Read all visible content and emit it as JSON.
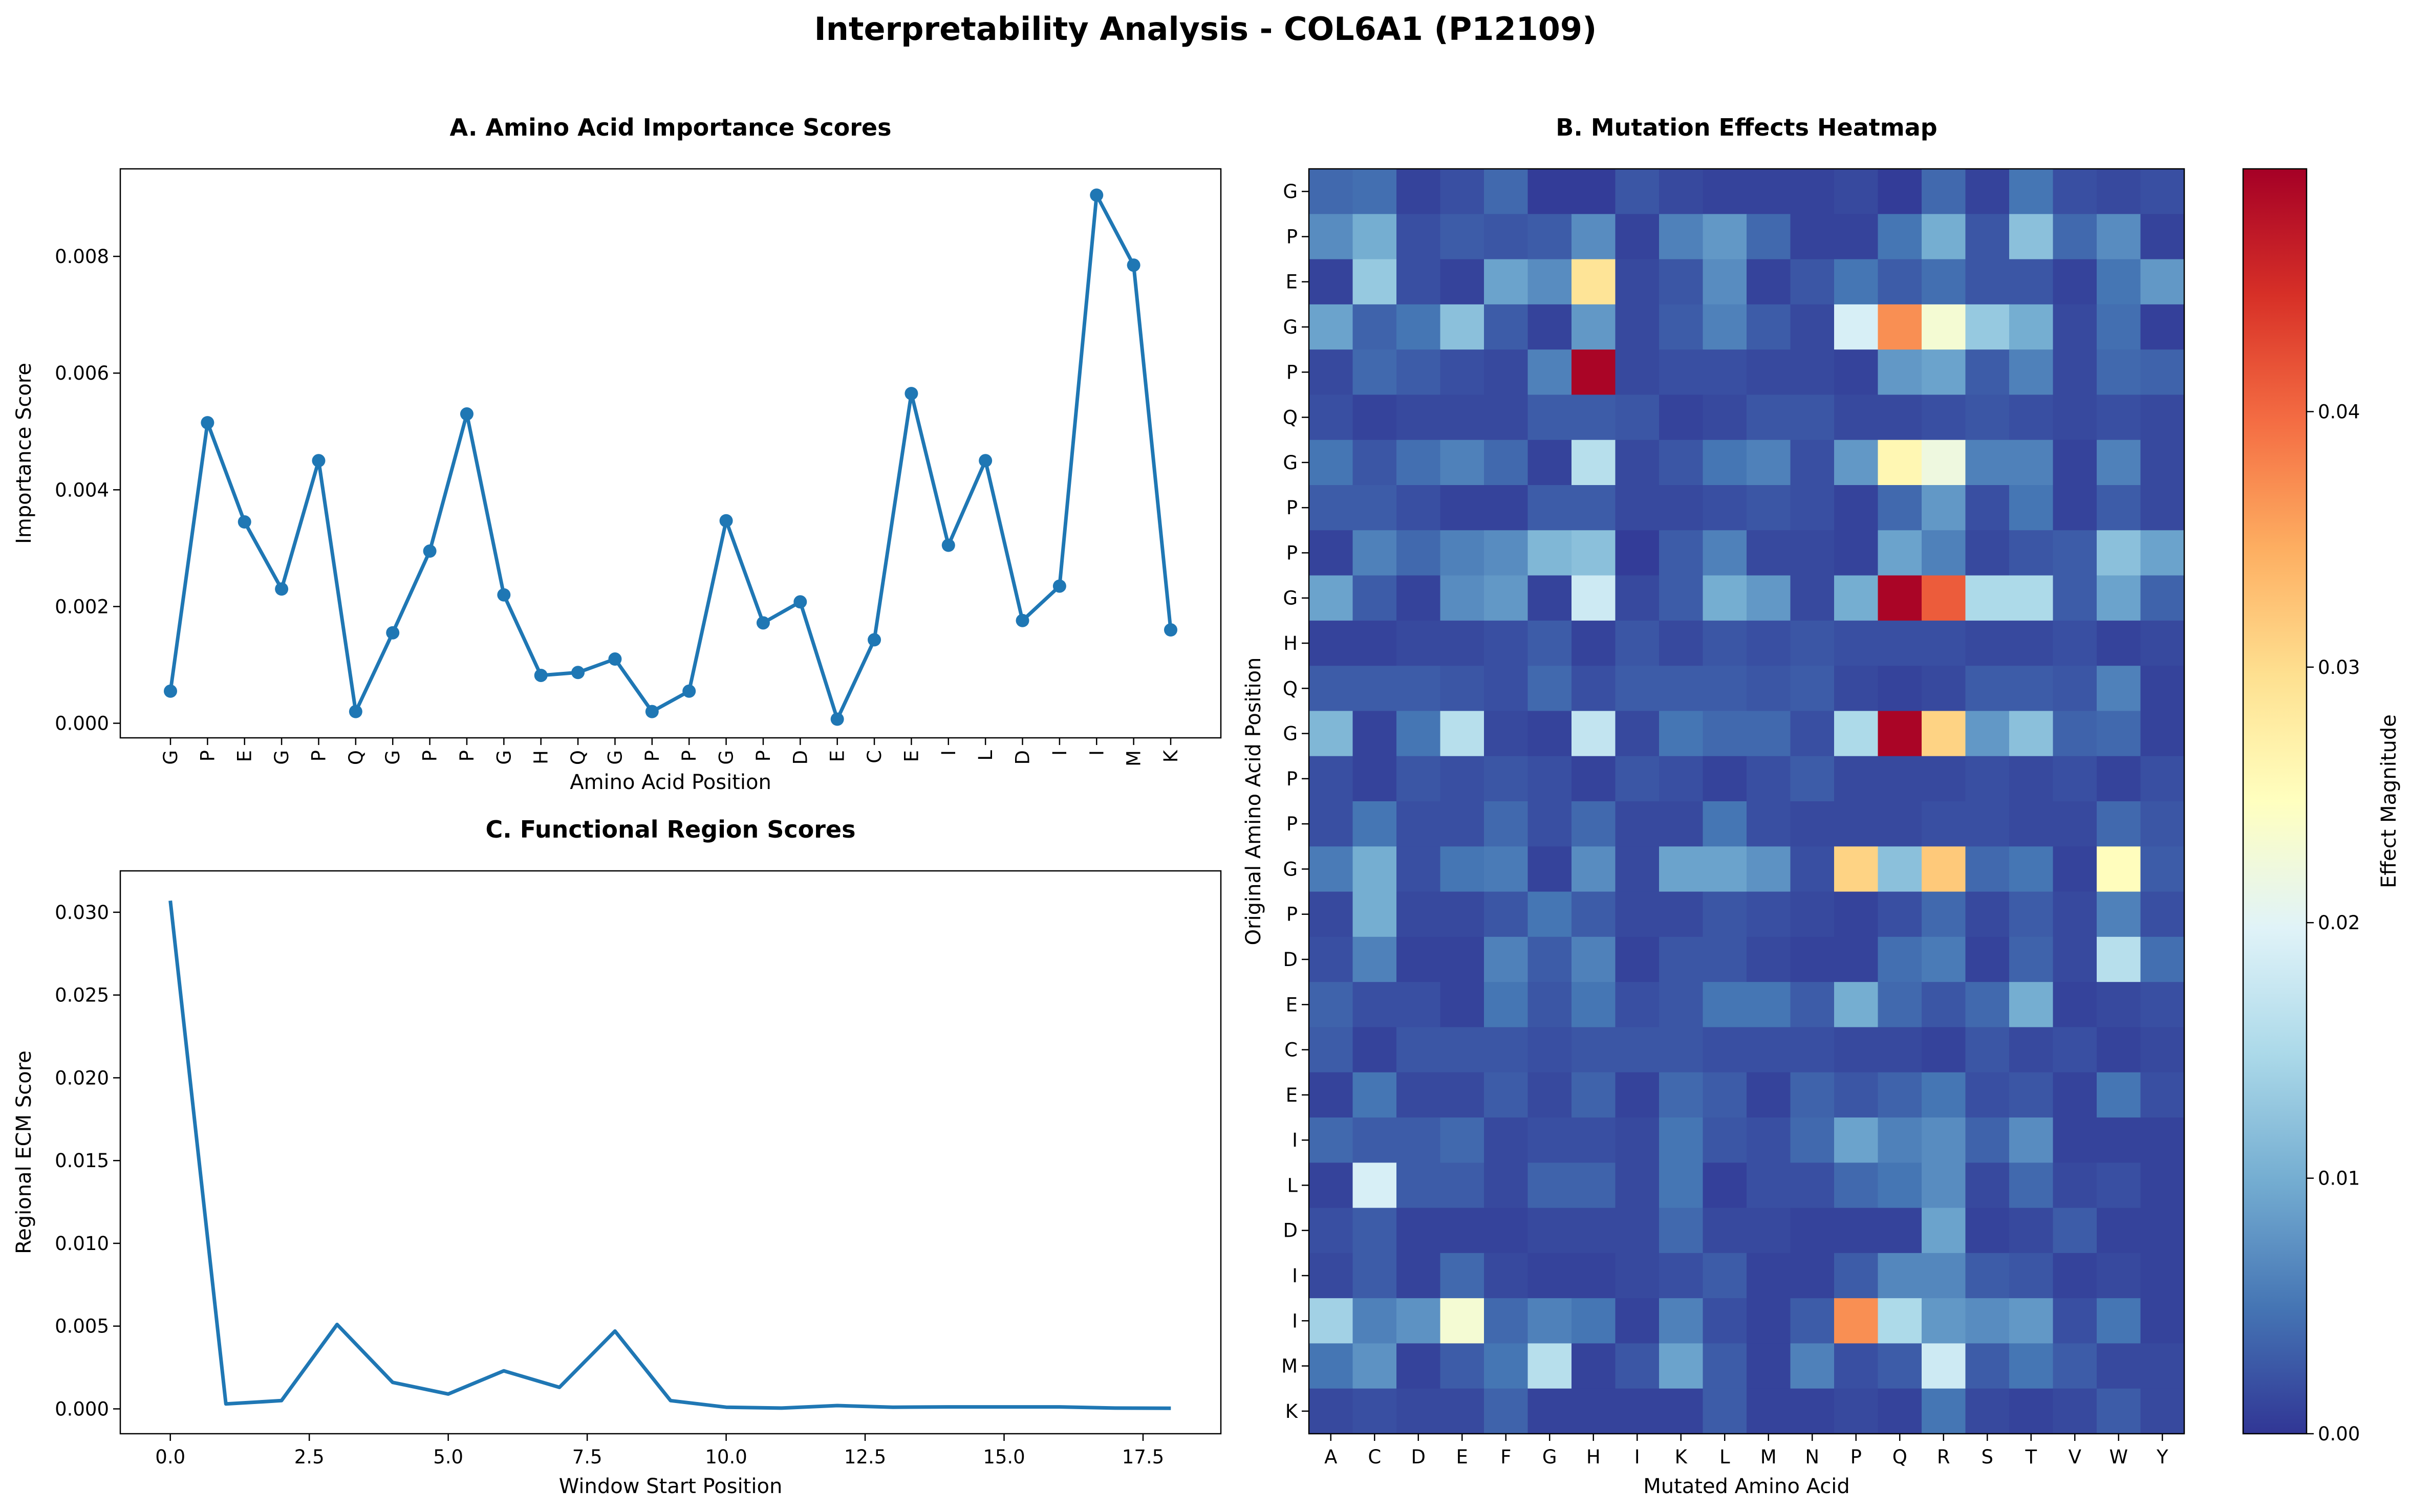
{
  "figure": {
    "title": "Interpretability Analysis - COL6A1 (P12109)"
  },
  "colors": {
    "line": "#1f77b4",
    "axis": "#000000",
    "colormap": "RdYlBu_r"
  },
  "chart_data": [
    {
      "id": "A",
      "type": "line",
      "title": "A. Amino Acid Importance Scores",
      "xlabel": "Amino Acid Position",
      "ylabel": "Importance Score",
      "categories": [
        "G",
        "P",
        "E",
        "G",
        "P",
        "Q",
        "G",
        "P",
        "P",
        "G",
        "H",
        "Q",
        "G",
        "P",
        "P",
        "G",
        "P",
        "D",
        "E",
        "C",
        "E",
        "I",
        "L",
        "D",
        "I",
        "I",
        "M",
        "K"
      ],
      "values": [
        0.00055,
        0.00515,
        0.00345,
        0.0023,
        0.0045,
        0.0002,
        0.00155,
        0.00295,
        0.0053,
        0.0022,
        0.00082,
        0.00087,
        0.0011,
        0.0002,
        0.00055,
        0.00347,
        0.00172,
        0.00208,
        7e-05,
        0.00143,
        0.00565,
        0.00305,
        0.0045,
        0.00176,
        0.00235,
        0.00905,
        0.00785,
        0.0016
      ],
      "ylim": [
        -0.00025,
        0.0095
      ],
      "yticks": [
        "0.000",
        "0.002",
        "0.004",
        "0.006",
        "0.008"
      ],
      "markers": true,
      "grid": false
    },
    {
      "id": "B",
      "type": "heatmap",
      "title": "B. Mutation Effects Heatmap",
      "xlabel": "Mutated Amino Acid",
      "ylabel": "Original Amino Acid Position",
      "x": [
        "A",
        "C",
        "D",
        "E",
        "F",
        "G",
        "H",
        "I",
        "K",
        "L",
        "M",
        "N",
        "P",
        "Q",
        "R",
        "S",
        "T",
        "V",
        "W",
        "Y"
      ],
      "y": [
        "G",
        "P",
        "E",
        "G",
        "P",
        "Q",
        "G",
        "P",
        "P",
        "G",
        "H",
        "Q",
        "G",
        "P",
        "P",
        "G",
        "P",
        "D",
        "E",
        "C",
        "E",
        "I",
        "L",
        "D",
        "I",
        "I",
        "M",
        "K"
      ],
      "values": [
        [
          0.004,
          0.0045,
          0.001,
          0.002,
          0.004,
          0.0005,
          0.0005,
          0.0025,
          0.0015,
          0.001,
          0.001,
          0.001,
          0.0015,
          0.0005,
          0.004,
          0.001,
          0.005,
          0.002,
          0.0015,
          0.002
        ],
        [
          0.007,
          0.01,
          0.002,
          0.003,
          0.0025,
          0.003,
          0.007,
          0.001,
          0.006,
          0.008,
          0.004,
          0.001,
          0.001,
          0.005,
          0.01,
          0.0025,
          0.012,
          0.004,
          0.007,
          0.001
        ],
        [
          0.001,
          0.013,
          0.002,
          0.001,
          0.009,
          0.007,
          0.029,
          0.0015,
          0.0025,
          0.007,
          0.001,
          0.0025,
          0.005,
          0.003,
          0.0045,
          0.0025,
          0.0025,
          0.001,
          0.005,
          0.008
        ],
        [
          0.009,
          0.0035,
          0.005,
          0.012,
          0.003,
          0.001,
          0.008,
          0.0015,
          0.003,
          0.006,
          0.003,
          0.0015,
          0.019,
          0.037,
          0.023,
          0.013,
          0.01,
          0.0015,
          0.0045,
          0.0008
        ],
        [
          0.0015,
          0.004,
          0.003,
          0.002,
          0.0015,
          0.006,
          0.049,
          0.0015,
          0.002,
          0.002,
          0.0015,
          0.0015,
          0.001,
          0.008,
          0.009,
          0.003,
          0.006,
          0.0015,
          0.004,
          0.0035
        ],
        [
          0.002,
          0.001,
          0.0015,
          0.0015,
          0.0015,
          0.003,
          0.003,
          0.0025,
          0.001,
          0.0015,
          0.0025,
          0.0025,
          0.0015,
          0.0015,
          0.002,
          0.0025,
          0.002,
          0.0015,
          0.002,
          0.0015
        ],
        [
          0.005,
          0.0025,
          0.0045,
          0.006,
          0.004,
          0.001,
          0.016,
          0.0015,
          0.0025,
          0.005,
          0.006,
          0.002,
          0.008,
          0.026,
          0.022,
          0.006,
          0.006,
          0.001,
          0.006,
          0.0015
        ],
        [
          0.003,
          0.003,
          0.002,
          0.001,
          0.001,
          0.003,
          0.003,
          0.0015,
          0.0015,
          0.002,
          0.0025,
          0.002,
          0.001,
          0.004,
          0.008,
          0.002,
          0.005,
          0.001,
          0.003,
          0.0015
        ],
        [
          0.001,
          0.006,
          0.004,
          0.006,
          0.007,
          0.011,
          0.012,
          0.0005,
          0.003,
          0.006,
          0.0015,
          0.0015,
          0.001,
          0.009,
          0.006,
          0.0015,
          0.0025,
          0.003,
          0.012,
          0.009
        ],
        [
          0.009,
          0.003,
          0.001,
          0.007,
          0.008,
          0.001,
          0.018,
          0.0015,
          0.003,
          0.01,
          0.008,
          0.0015,
          0.01,
          0.049,
          0.041,
          0.015,
          0.015,
          0.003,
          0.009,
          0.0035
        ],
        [
          0.001,
          0.001,
          0.0015,
          0.0015,
          0.002,
          0.003,
          0.001,
          0.0025,
          0.0015,
          0.0025,
          0.002,
          0.0025,
          0.002,
          0.002,
          0.002,
          0.0015,
          0.0015,
          0.002,
          0.001,
          0.0015
        ],
        [
          0.003,
          0.003,
          0.003,
          0.0025,
          0.002,
          0.004,
          0.002,
          0.003,
          0.003,
          0.003,
          0.0025,
          0.003,
          0.0015,
          0.001,
          0.0015,
          0.003,
          0.003,
          0.0025,
          0.006,
          0.001
        ],
        [
          0.011,
          0.001,
          0.005,
          0.016,
          0.0015,
          0.001,
          0.017,
          0.0015,
          0.005,
          0.004,
          0.004,
          0.002,
          0.015,
          0.049,
          0.031,
          0.008,
          0.012,
          0.0035,
          0.004,
          0.001
        ],
        [
          0.002,
          0.001,
          0.0025,
          0.002,
          0.0025,
          0.002,
          0.001,
          0.0025,
          0.002,
          0.001,
          0.002,
          0.003,
          0.0015,
          0.0015,
          0.0015,
          0.002,
          0.0015,
          0.002,
          0.001,
          0.002
        ],
        [
          0.002,
          0.005,
          0.002,
          0.002,
          0.004,
          0.002,
          0.004,
          0.0015,
          0.0015,
          0.005,
          0.002,
          0.0015,
          0.0015,
          0.0015,
          0.002,
          0.002,
          0.0015,
          0.0015,
          0.004,
          0.0025
        ],
        [
          0.0055,
          0.01,
          0.002,
          0.005,
          0.0055,
          0.001,
          0.007,
          0.0015,
          0.009,
          0.009,
          0.0075,
          0.002,
          0.031,
          0.012,
          0.032,
          0.004,
          0.005,
          0.001,
          0.025,
          0.003
        ],
        [
          0.0015,
          0.01,
          0.0015,
          0.0015,
          0.0025,
          0.005,
          0.003,
          0.0015,
          0.0015,
          0.0025,
          0.002,
          0.0015,
          0.001,
          0.002,
          0.004,
          0.0015,
          0.003,
          0.0015,
          0.006,
          0.002
        ],
        [
          0.002,
          0.006,
          0.001,
          0.001,
          0.006,
          0.003,
          0.006,
          0.001,
          0.0025,
          0.0025,
          0.0015,
          0.001,
          0.001,
          0.0045,
          0.0055,
          0.001,
          0.0035,
          0.0015,
          0.016,
          0.0045
        ],
        [
          0.0035,
          0.002,
          0.002,
          0.001,
          0.005,
          0.0025,
          0.005,
          0.002,
          0.0025,
          0.005,
          0.005,
          0.003,
          0.01,
          0.004,
          0.0025,
          0.004,
          0.01,
          0.001,
          0.0015,
          0.002
        ],
        [
          0.003,
          0.001,
          0.0025,
          0.0025,
          0.0025,
          0.002,
          0.0025,
          0.0025,
          0.0025,
          0.002,
          0.002,
          0.002,
          0.0015,
          0.0015,
          0.001,
          0.0025,
          0.0015,
          0.002,
          0.001,
          0.0015
        ],
        [
          0.001,
          0.005,
          0.0015,
          0.0015,
          0.003,
          0.0015,
          0.0035,
          0.001,
          0.004,
          0.003,
          0.001,
          0.0035,
          0.0025,
          0.0035,
          0.005,
          0.002,
          0.0025,
          0.001,
          0.005,
          0.002
        ],
        [
          0.004,
          0.003,
          0.003,
          0.004,
          0.0015,
          0.002,
          0.002,
          0.0015,
          0.005,
          0.0025,
          0.002,
          0.004,
          0.009,
          0.006,
          0.007,
          0.0035,
          0.007,
          0.001,
          0.001,
          0.001
        ],
        [
          0.001,
          0.019,
          0.003,
          0.003,
          0.0015,
          0.0035,
          0.0035,
          0.0015,
          0.005,
          0.0008,
          0.002,
          0.002,
          0.004,
          0.005,
          0.007,
          0.0015,
          0.004,
          0.0015,
          0.002,
          0.001
        ],
        [
          0.002,
          0.003,
          0.001,
          0.001,
          0.001,
          0.0015,
          0.0015,
          0.0015,
          0.004,
          0.0015,
          0.0015,
          0.001,
          0.001,
          0.001,
          0.009,
          0.001,
          0.0015,
          0.003,
          0.001,
          0.001
        ],
        [
          0.0015,
          0.003,
          0.001,
          0.004,
          0.0015,
          0.001,
          0.001,
          0.0015,
          0.002,
          0.003,
          0.001,
          0.001,
          0.003,
          0.0065,
          0.0065,
          0.003,
          0.0025,
          0.001,
          0.0015,
          0.001
        ],
        [
          0.014,
          0.006,
          0.0075,
          0.023,
          0.004,
          0.006,
          0.005,
          0.001,
          0.006,
          0.002,
          0.001,
          0.003,
          0.037,
          0.015,
          0.008,
          0.007,
          0.008,
          0.002,
          0.005,
          0.001
        ],
        [
          0.005,
          0.0075,
          0.001,
          0.003,
          0.005,
          0.016,
          0.001,
          0.0025,
          0.009,
          0.003,
          0.001,
          0.006,
          0.002,
          0.003,
          0.018,
          0.003,
          0.005,
          0.003,
          0.0015,
          0.0015
        ],
        [
          0.0015,
          0.002,
          0.0015,
          0.0015,
          0.0035,
          0.001,
          0.001,
          0.001,
          0.001,
          0.003,
          0.001,
          0.001,
          0.0015,
          0.001,
          0.005,
          0.0015,
          0.001,
          0.0015,
          0.003,
          0.0015
        ]
      ],
      "colorbar": {
        "label": "Effect Magnitude",
        "range": [
          0,
          0.0495
        ],
        "ticks": [
          "0.00",
          "0.01",
          "0.02",
          "0.03",
          "0.04"
        ]
      }
    },
    {
      "id": "C",
      "type": "line",
      "title": "C. Functional Region Scores",
      "xlabel": "Window Start Position",
      "ylabel": "Regional ECM Score",
      "x": [
        0,
        1,
        2,
        3,
        4,
        5,
        6,
        7,
        8,
        9,
        10,
        11,
        12,
        13,
        14,
        15,
        16,
        17,
        18
      ],
      "values": [
        0.0307,
        0.0003,
        0.0005,
        0.0051,
        0.0016,
        0.0009,
        0.0023,
        0.0013,
        0.0047,
        0.0005,
        0.0001,
        5e-05,
        0.0002,
        0.0001,
        0.00012,
        0.00012,
        0.00012,
        5e-05,
        4e-05
      ],
      "xlim": [
        -0.9,
        18.9
      ],
      "ylim": [
        -0.0015,
        0.0325
      ],
      "xticks": [
        "0.0",
        "2.5",
        "5.0",
        "7.5",
        "10.0",
        "12.5",
        "15.0",
        "17.5"
      ],
      "yticks": [
        "0.000",
        "0.005",
        "0.010",
        "0.015",
        "0.020",
        "0.025",
        "0.030"
      ],
      "markers": false,
      "grid": false
    }
  ]
}
